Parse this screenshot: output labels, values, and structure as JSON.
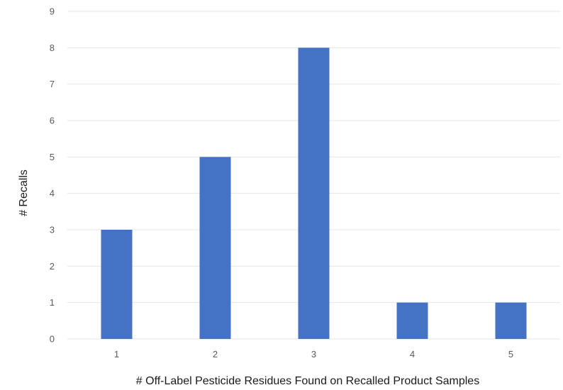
{
  "chart_data": {
    "type": "bar",
    "title": "",
    "xlabel": "# Off-Label Pesticide Residues Found on Recalled Product Samples",
    "ylabel": "# Recalls",
    "categories": [
      "1",
      "2",
      "3",
      "4",
      "5"
    ],
    "values": [
      3,
      5,
      8,
      1,
      1
    ],
    "ylim": [
      0,
      9
    ],
    "yticks": [
      "0",
      "1",
      "2",
      "3",
      "4",
      "5",
      "6",
      "7",
      "8",
      "9"
    ],
    "grid": true,
    "legend": "none",
    "colors": {
      "bar": "#4472c4",
      "grid": "#e6e6e6"
    }
  }
}
